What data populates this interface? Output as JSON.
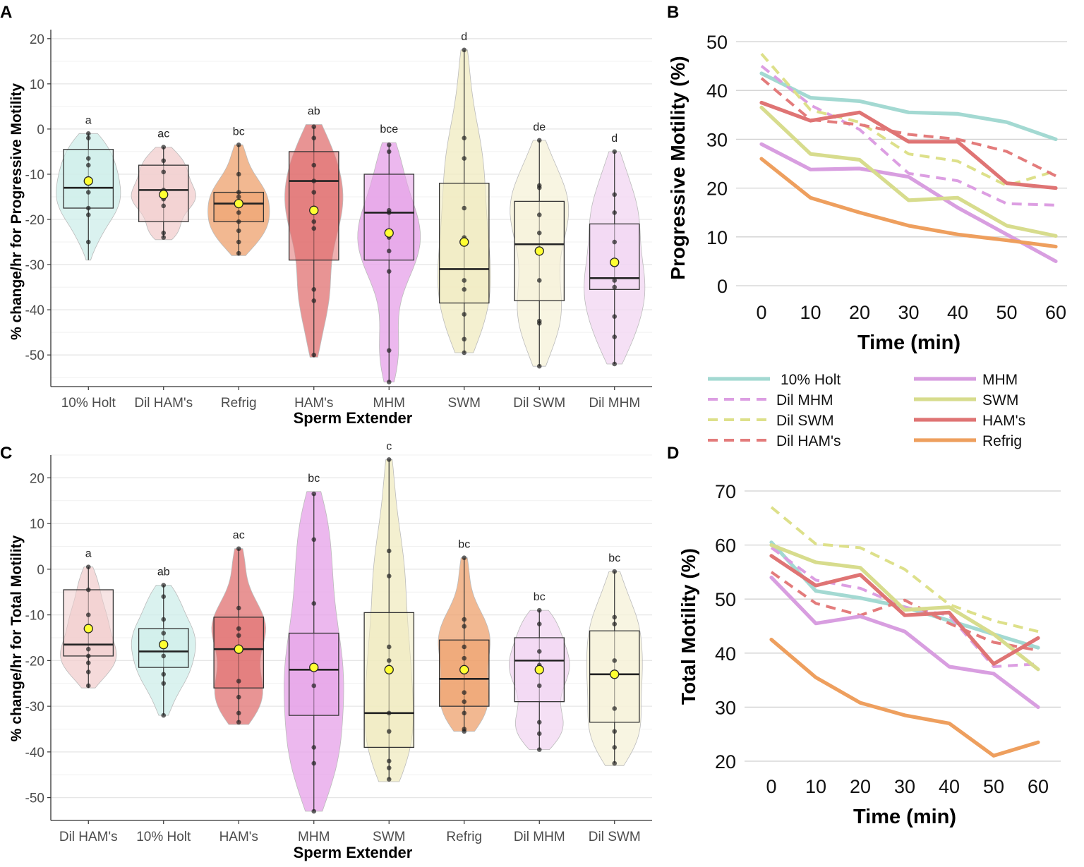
{
  "chart_data": [
    {
      "panel": "A",
      "type": "box-violin",
      "ylabel": "% change/hr for Progressive Motility",
      "xlabel": "Sperm Extender",
      "ylim": [
        -57,
        22
      ],
      "yticks": [
        20,
        10,
        0,
        -10,
        -20,
        -30,
        -40,
        -50
      ],
      "groups": [
        {
          "name": "10% Holt",
          "letter": "a",
          "color": "#cdeeea",
          "vmin": -29,
          "vmax": -1,
          "q1": -17.5,
          "median": -13,
          "q3": -4.5,
          "mean": -11.5,
          "wlo": -29,
          "whi": -1,
          "points": [
            -1,
            -2,
            -6.5,
            -8,
            -12,
            -14,
            -17.5,
            -19,
            -25
          ]
        },
        {
          "name": "Dil HAM's",
          "letter": "ac",
          "color": "#f1cdcd",
          "vmin": -24.5,
          "vmax": -4,
          "q1": -20.5,
          "median": -13.5,
          "q3": -8,
          "mean": -14.5,
          "wlo": -24,
          "whi": -4,
          "points": [
            -4,
            -7,
            -9.5,
            -13.5,
            -15.5,
            -17,
            -23,
            -24
          ]
        },
        {
          "name": "Refrig",
          "letter": "bc",
          "color": "#eea06c",
          "vmin": -28,
          "vmax": -3.5,
          "q1": -20.5,
          "median": -16.5,
          "q3": -14,
          "mean": -16.5,
          "wlo": -28,
          "whi": -3.5,
          "points": [
            -3.5,
            -10,
            -14,
            -15,
            -18.5,
            -20.5,
            -22.5,
            -25,
            -27.5
          ]
        },
        {
          "name": "HAM's",
          "letter": "ab",
          "color": "#e07070",
          "vmin": -50.5,
          "vmax": 1,
          "q1": -29,
          "median": -11.5,
          "q3": -5,
          "mean": -18,
          "wlo": -50.5,
          "whi": 0.5,
          "points": [
            0.5,
            -2,
            -8,
            -11.5,
            -14,
            -20.5,
            -22,
            -35.5,
            -38,
            -50
          ]
        },
        {
          "name": "MHM",
          "letter": "bce",
          "color": "#e5a0e8",
          "vmin": -56,
          "vmax": -3,
          "q1": -29,
          "median": -18.5,
          "q3": -10,
          "mean": -23,
          "wlo": -56,
          "whi": -3.5,
          "points": [
            -3.5,
            -5,
            -18,
            -18.5,
            -24,
            -27,
            -31.5,
            -49,
            -56
          ]
        },
        {
          "name": "SWM",
          "letter": "d",
          "color": "#f0ebc0",
          "vmin": -49.5,
          "vmax": 17.5,
          "q1": -38.5,
          "median": -31,
          "q3": -12,
          "mean": -25,
          "wlo": -49.5,
          "whi": 17.5,
          "points": [
            17.5,
            -2,
            -6.5,
            -17.5,
            -24,
            -33.5,
            -35.5,
            -41,
            -46.5,
            -49.5
          ]
        },
        {
          "name": "Dil SWM",
          "letter": "de",
          "color": "#f6f1d8",
          "vmin": -52.5,
          "vmax": -2.5,
          "q1": -38,
          "median": -25.5,
          "q3": -16,
          "mean": -27,
          "wlo": -52.5,
          "whi": -2.5,
          "points": [
            -2.5,
            -12.5,
            -13,
            -19,
            -23,
            -33.5,
            -42.5,
            -43,
            -52.5
          ]
        },
        {
          "name": "Dil MHM",
          "letter": "d",
          "color": "#f1d6f2",
          "vmin": -52,
          "vmax": -5,
          "q1": -35.5,
          "median": -33,
          "q3": -21,
          "mean": -29.5,
          "wlo": -52,
          "whi": -5,
          "points": [
            -5,
            -14.5,
            -18.5,
            -25,
            -33.5,
            -35,
            -41.5,
            -46,
            -52
          ]
        }
      ]
    },
    {
      "panel": "B",
      "type": "line",
      "ylabel": "Progressive Motility (%)",
      "xlabel": "Time (min)",
      "x": [
        0,
        10,
        20,
        30,
        40,
        50,
        60
      ],
      "ylim": [
        0,
        50
      ],
      "yticks": [
        0,
        10,
        20,
        30,
        40,
        50
      ],
      "series": [
        {
          "name": "10% Holt",
          "color": "#a3d9d2",
          "dashed": false,
          "values": [
            43.5,
            38.5,
            37.8,
            35.5,
            35.2,
            33.5,
            30
          ]
        },
        {
          "name": "Dil MHM",
          "color": "#dc9ee2",
          "dashed": true,
          "values": [
            45,
            37,
            32,
            23,
            21.5,
            16.8,
            16.5
          ]
        },
        {
          "name": "Dil SWM",
          "color": "#dde08a",
          "dashed": true,
          "values": [
            47.5,
            36,
            33.5,
            27,
            25.5,
            20.5,
            23.5
          ]
        },
        {
          "name": "Dil HAM's",
          "color": "#e37b7b",
          "dashed": true,
          "values": [
            42.5,
            34,
            33,
            31,
            30,
            27.5,
            22.5
          ]
        },
        {
          "name": "MHM",
          "color": "#d89ee0",
          "dashed": false,
          "values": [
            29,
            23.8,
            24,
            22.3,
            16,
            10.5,
            5
          ]
        },
        {
          "name": "SWM",
          "color": "#d7dc8d",
          "dashed": false,
          "values": [
            36.5,
            27,
            25.8,
            17.5,
            18,
            12.3,
            10.2
          ]
        },
        {
          "name": "HAM's",
          "color": "#df7474",
          "dashed": false,
          "values": [
            37.5,
            33.8,
            35.5,
            29.5,
            29.5,
            21,
            20
          ]
        },
        {
          "name": "Refrig",
          "color": "#ee9f5e",
          "dashed": false,
          "values": [
            26,
            18,
            15,
            12.3,
            10.5,
            9.3,
            8
          ]
        }
      ]
    },
    {
      "panel": "C",
      "type": "box-violin",
      "ylabel": "% change/hr for Total Motility",
      "xlabel": "Sperm Extender",
      "ylim": [
        -55,
        25
      ],
      "yticks": [
        20,
        10,
        0,
        -10,
        -20,
        -30,
        -40,
        -50
      ],
      "groups": [
        {
          "name": "Dil HAM's",
          "letter": "a",
          "color": "#f1cdcd",
          "vmin": -26,
          "vmax": 0.5,
          "q1": -19,
          "median": -16.5,
          "q3": -4.5,
          "mean": -13,
          "wlo": -26,
          "whi": 0.5,
          "points": [
            0.5,
            -4.5,
            -10,
            -12.5,
            -17.5,
            -19,
            -20.5,
            -22.5,
            -25.5
          ]
        },
        {
          "name": "10% Holt",
          "letter": "ab",
          "color": "#cdeeea",
          "vmin": -32,
          "vmax": -3.5,
          "q1": -21.5,
          "median": -18,
          "q3": -13,
          "mean": -16.5,
          "wlo": -32,
          "whi": -3.5,
          "points": [
            -3.5,
            -6,
            -11,
            -14,
            -16,
            -19,
            -23,
            -25,
            -32
          ]
        },
        {
          "name": "HAM's",
          "letter": "ac",
          "color": "#e07070",
          "vmin": -34,
          "vmax": 4.5,
          "q1": -26,
          "median": -17.5,
          "q3": -10.5,
          "mean": -17.5,
          "wlo": -33.5,
          "whi": 4.5,
          "points": [
            4.5,
            -8.5,
            -13,
            -14.5,
            -24.5,
            -28,
            -31.5,
            -33.5
          ]
        },
        {
          "name": "MHM",
          "letter": "bc",
          "color": "#e5a0e8",
          "vmin": -53,
          "vmax": 17,
          "q1": -32,
          "median": -22,
          "q3": -14,
          "mean": -21.5,
          "wlo": -53,
          "whi": 16.5,
          "points": [
            16.5,
            6.5,
            -7.5,
            -21,
            -25.5,
            -39,
            -42.5,
            -53
          ]
        },
        {
          "name": "SWM",
          "letter": "c",
          "color": "#f0ebc0",
          "vmin": -46.5,
          "vmax": 24,
          "q1": -39,
          "median": -31.5,
          "q3": -9.5,
          "mean": -22,
          "wlo": -46,
          "whi": 24,
          "points": [
            24,
            4,
            -1.5,
            -17,
            -20,
            -31.5,
            -35.5,
            -42,
            -43.5,
            -46
          ]
        },
        {
          "name": "Refrig",
          "letter": "bc",
          "color": "#eea06c",
          "vmin": -35.5,
          "vmax": 2.5,
          "q1": -30,
          "median": -24,
          "q3": -15.5,
          "mean": -22,
          "wlo": -35.5,
          "whi": 2.5,
          "points": [
            2.5,
            -11,
            -12.5,
            -17,
            -19.5,
            -27,
            -29,
            -31.5,
            -35,
            -35.5
          ]
        },
        {
          "name": "Dil MHM",
          "letter": "bc",
          "color": "#f1d6f2",
          "vmin": -39.5,
          "vmax": -9,
          "q1": -29,
          "median": -20,
          "q3": -15,
          "mean": -22,
          "wlo": -39.5,
          "whi": -9,
          "points": [
            -9,
            -12,
            -18,
            -21,
            -25.5,
            -33.5,
            -36,
            -39.5
          ]
        },
        {
          "name": "Dil SWM",
          "letter": "bc",
          "color": "#f6f1d8",
          "vmin": -43,
          "vmax": -0.5,
          "q1": -33.5,
          "median": -23,
          "q3": -13.5,
          "mean": -23,
          "wlo": -42.5,
          "whi": -0.5,
          "points": [
            -0.5,
            -10.5,
            -12,
            -20,
            -23.5,
            -30.5,
            -35.5,
            -39,
            -42.5
          ]
        }
      ]
    },
    {
      "panel": "D",
      "type": "line",
      "ylabel": "Total Motility (%)",
      "xlabel": "Time (min)",
      "x": [
        0,
        10,
        20,
        30,
        40,
        50,
        60
      ],
      "ylim": [
        20,
        70
      ],
      "yticks": [
        20,
        30,
        40,
        50,
        60,
        70
      ],
      "series": [
        {
          "name": "10% Holt",
          "color": "#a3d9d2",
          "dashed": false,
          "values": [
            60.5,
            51.5,
            50.2,
            48.5,
            46,
            43.5,
            41
          ]
        },
        {
          "name": "Dil MHM",
          "color": "#dc9ee2",
          "dashed": true,
          "values": [
            59.5,
            53.5,
            52,
            48.5,
            47,
            37.5,
            38
          ]
        },
        {
          "name": "Dil SWM",
          "color": "#dde08a",
          "dashed": true,
          "values": [
            67,
            60.2,
            59.5,
            55.5,
            49,
            46,
            44
          ]
        },
        {
          "name": "Dil HAM's",
          "color": "#e37b7b",
          "dashed": true,
          "values": [
            55,
            49.2,
            47,
            49.8,
            45.5,
            42,
            40.5
          ]
        },
        {
          "name": "MHM",
          "color": "#d89ee0",
          "dashed": false,
          "values": [
            54,
            45.5,
            46.8,
            44,
            37.5,
            36.2,
            30
          ]
        },
        {
          "name": "SWM",
          "color": "#d7dc8d",
          "dashed": false,
          "values": [
            60,
            56.8,
            55.8,
            48,
            48.5,
            43.5,
            37
          ]
        },
        {
          "name": "HAM's",
          "color": "#df7474",
          "dashed": false,
          "values": [
            58,
            52.5,
            54.5,
            47,
            47.5,
            38,
            42.8
          ]
        },
        {
          "name": "Refrig",
          "color": "#ee9f5e",
          "dashed": false,
          "values": [
            42.5,
            35.5,
            30.8,
            28.5,
            27,
            21,
            23.5
          ]
        }
      ]
    }
  ]
}
